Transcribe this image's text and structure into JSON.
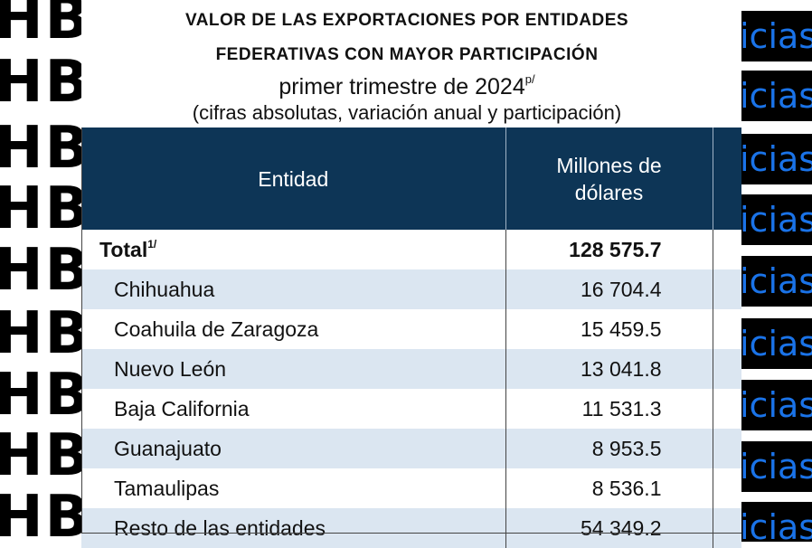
{
  "title_line1": "VALOR DE LAS EXPORTACIONES POR ENTIDADES",
  "title_line2": "FEDERATIVAS CON MAYOR PARTICIPACIÓN",
  "subtitle": "primer trimestre de 2024",
  "subtitle_sup": "p/",
  "subnote": "(cifras absolutas, variación anual y participación)",
  "table": {
    "headers": {
      "entidad": "Entidad",
      "millones_line1": "Millones de",
      "millones_line2": "dólares"
    },
    "total": {
      "label": "Total",
      "sup": "1/",
      "value": "128 575.7"
    },
    "rows": [
      {
        "entidad": "Chihuahua",
        "value": "16 704.4"
      },
      {
        "entidad": "Coahuila de Zaragoza",
        "value": "15 459.5"
      },
      {
        "entidad": "Nuevo León",
        "value": "13 041.8"
      },
      {
        "entidad": "Baja California",
        "value": "11 531.3"
      },
      {
        "entidad": "Guanajuato",
        "value": "8 953.5"
      },
      {
        "entidad": "Tamaulipas",
        "value": "8 536.1"
      },
      {
        "entidad": "Resto de las entidades",
        "value": "54 349.2"
      }
    ]
  },
  "watermark_left": "HB",
  "watermark_right": "icias",
  "colors": {
    "header_bg": "#0d3556",
    "row_alt": "#dbe6f1",
    "watermark_text": "#1a73e8"
  }
}
